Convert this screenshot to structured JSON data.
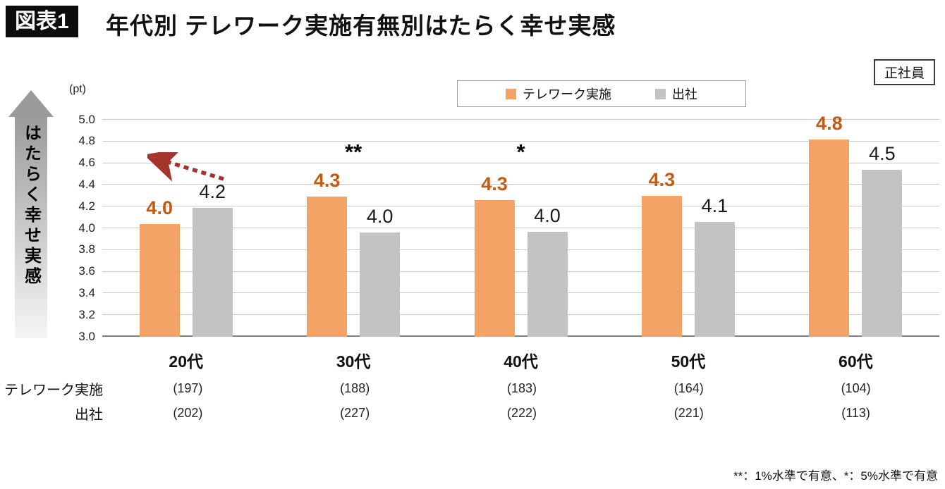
{
  "header": {
    "badge": "図表1",
    "title": "年代別 テレワーク実施有無別はたらく幸せ実感",
    "tag": "正社員"
  },
  "footnote": "**：1%水準で有意、*：5%水準で有意",
  "colors": {
    "accent_orange": "#F2A365",
    "orange_label": "#C55A11",
    "bar_gray": "#C3C3C3",
    "arrow_red": "#A5342D",
    "grid": "#CBCBCB",
    "baseline": "#7F7F7F"
  },
  "chart_data": {
    "type": "bar",
    "title": "年代別 テレワーク実施有無別はたらく幸せ実感",
    "unit": "(pt)",
    "ylabel": "はたらく幸せ実感",
    "xlabel": "",
    "ylim": [
      3.0,
      5.0
    ],
    "yticks": [
      3.0,
      3.2,
      3.4,
      3.6,
      3.8,
      4.0,
      4.2,
      4.4,
      4.6,
      4.8,
      5.0
    ],
    "grid": true,
    "legend_position": "top",
    "categories": [
      "20代",
      "30代",
      "40代",
      "50代",
      "60代"
    ],
    "series": [
      {
        "name": "テレワーク実施",
        "color": "#F2A365",
        "label_color": "#C55A11",
        "values": [
          4.0,
          4.3,
          4.3,
          4.3,
          4.8
        ],
        "precise": [
          4.04,
          4.29,
          4.26,
          4.3,
          4.82
        ],
        "n": [
          "(197)",
          "(188)",
          "(183)",
          "(164)",
          "(104)"
        ]
      },
      {
        "name": "出社",
        "color": "#C3C3C3",
        "label_color": "#1A1A1A",
        "values": [
          4.2,
          4.0,
          4.0,
          4.1,
          4.5
        ],
        "precise": [
          4.19,
          3.96,
          3.97,
          4.06,
          4.54
        ],
        "n": [
          "(202)",
          "(227)",
          "(222)",
          "(221)",
          "(113)"
        ]
      }
    ],
    "significance": [
      "",
      "**",
      "*",
      "",
      ""
    ]
  }
}
